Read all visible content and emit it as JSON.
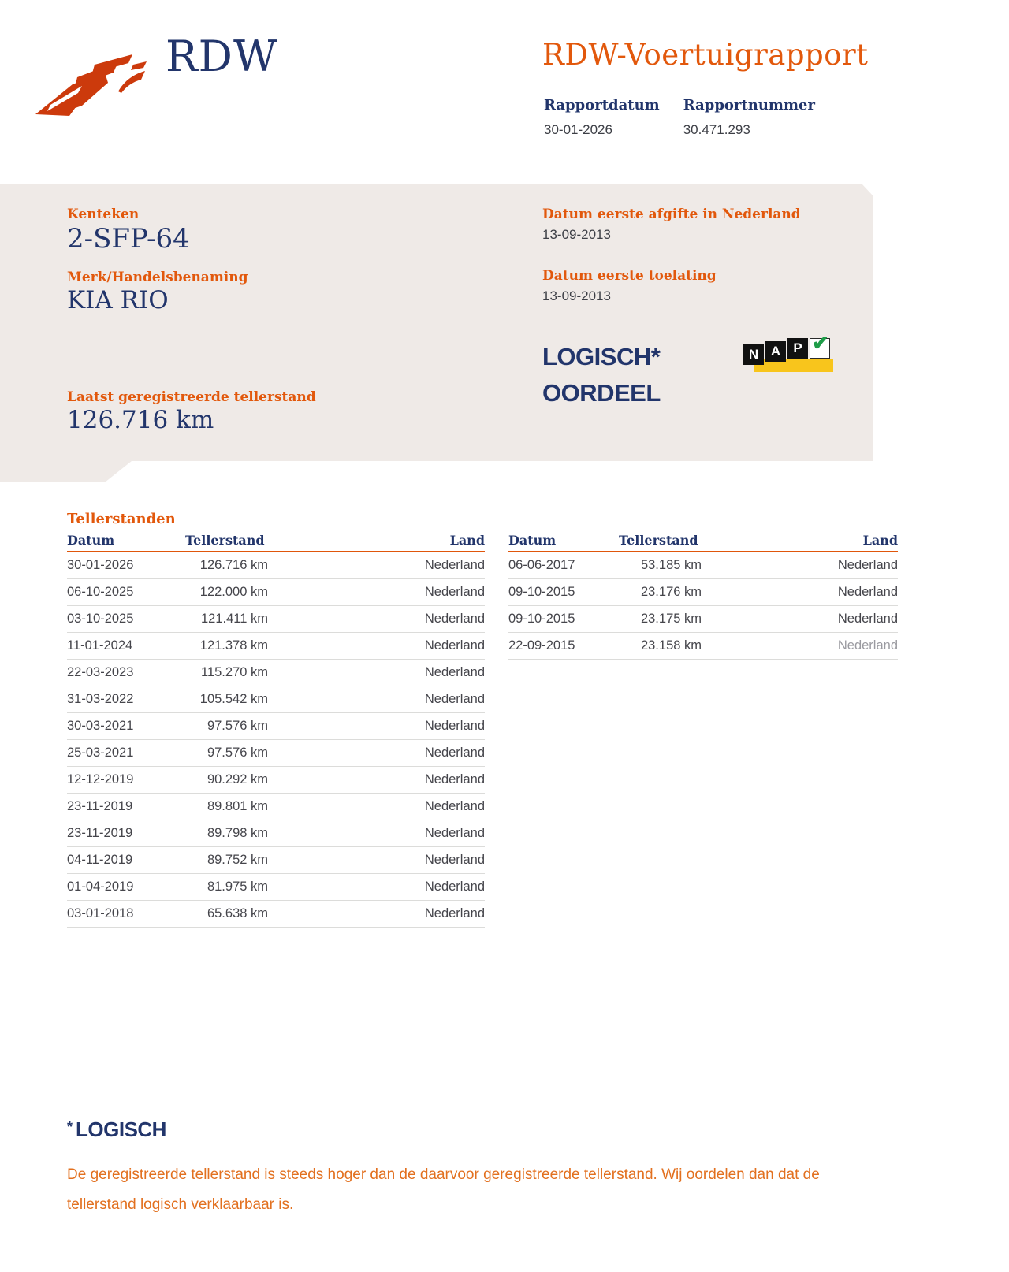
{
  "header": {
    "brand": "RDW",
    "title": "RDW-Voertuigrapport",
    "report_date_label": "Rapportdatum",
    "report_date": "30-01-2026",
    "report_number_label": "Rapportnummer",
    "report_number": "30.471.293"
  },
  "summary": {
    "kenteken_label": "Kenteken",
    "kenteken": "2-SFP-64",
    "merk_label": "Merk/Handelsbenaming",
    "merk": "KIA RIO",
    "laatste_tellerstand_label": "Laatst geregistreerde tellerstand",
    "laatste_tellerstand": "126.716 km",
    "afgifte_label": "Datum eerste afgifte in Nederland",
    "afgifte": "13-09-2013",
    "toelating_label": "Datum eerste toelating",
    "toelating": "13-09-2013",
    "oordeel_line1": "LOGISCH*",
    "oordeel_line2": "OORDEEL",
    "nap": {
      "letter1": "N",
      "letter2": "A",
      "letter3": "P",
      "check": "✔"
    }
  },
  "tellerstanden": {
    "section_title": "Tellerstanden",
    "columns": [
      "Datum",
      "Tellerstand",
      "Land"
    ],
    "left_rows": [
      {
        "datum": "30-01-2026",
        "tellerstand": "126.716 km",
        "land": "Nederland"
      },
      {
        "datum": "06-10-2025",
        "tellerstand": "122.000 km",
        "land": "Nederland"
      },
      {
        "datum": "03-10-2025",
        "tellerstand": "121.411 km",
        "land": "Nederland"
      },
      {
        "datum": "11-01-2024",
        "tellerstand": "121.378 km",
        "land": "Nederland"
      },
      {
        "datum": "22-03-2023",
        "tellerstand": "115.270 km",
        "land": "Nederland"
      },
      {
        "datum": "31-03-2022",
        "tellerstand": "105.542 km",
        "land": "Nederland"
      },
      {
        "datum": "30-03-2021",
        "tellerstand": "97.576 km",
        "land": "Nederland"
      },
      {
        "datum": "25-03-2021",
        "tellerstand": "97.576 km",
        "land": "Nederland"
      },
      {
        "datum": "12-12-2019",
        "tellerstand": "90.292 km",
        "land": "Nederland"
      },
      {
        "datum": "23-11-2019",
        "tellerstand": "89.801 km",
        "land": "Nederland"
      },
      {
        "datum": "23-11-2019",
        "tellerstand": "89.798 km",
        "land": "Nederland"
      },
      {
        "datum": "04-11-2019",
        "tellerstand": "89.752 km",
        "land": "Nederland"
      },
      {
        "datum": "01-04-2019",
        "tellerstand": "81.975 km",
        "land": "Nederland"
      },
      {
        "datum": "03-01-2018",
        "tellerstand": "65.638 km",
        "land": "Nederland"
      }
    ],
    "right_rows": [
      {
        "datum": "06-06-2017",
        "tellerstand": "53.185 km",
        "land": "Nederland"
      },
      {
        "datum": "09-10-2015",
        "tellerstand": "23.176 km",
        "land": "Nederland"
      },
      {
        "datum": "09-10-2015",
        "tellerstand": "23.175 km",
        "land": "Nederland"
      },
      {
        "datum": "22-09-2015",
        "tellerstand": "23.158 km",
        "land": "Nederland",
        "muted": true
      }
    ]
  },
  "footnote": {
    "star": "*",
    "heading": "LOGISCH",
    "text": "De geregistreerde tellerstand is steeds hoger dan de daarvoor geregistreerde tellerstand. Wij oordelen dan dat de tellerstand logisch verklaarbaar is."
  },
  "colors": {
    "accent_orange": "#e2580c",
    "logo_red": "#cc3a0c",
    "navy": "#22356b",
    "panel_gray": "#efeae7",
    "nap_yellow": "#f8c51c",
    "nap_green": "#1e9c48",
    "body_text": "#45454b",
    "footnote_orange": "#e2701f"
  }
}
